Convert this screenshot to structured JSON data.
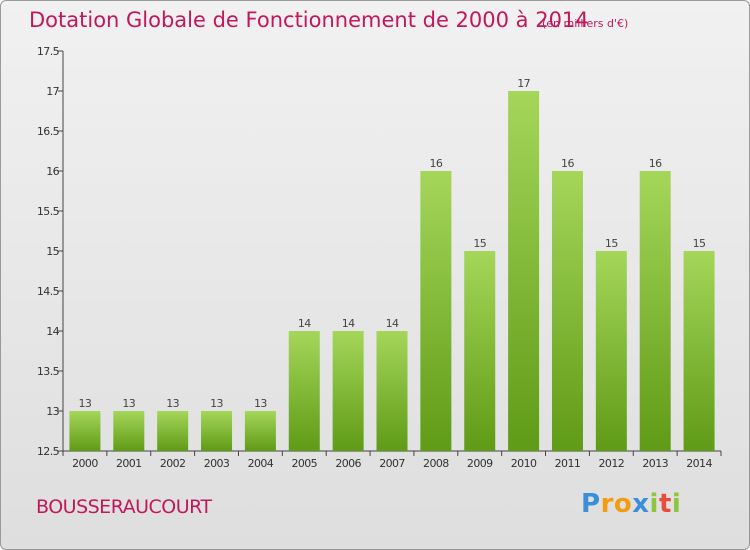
{
  "title": "Dotation Globale de Fonctionnement de 2000 à 2014",
  "subtitle": "(en milliers d'€)",
  "commune": "BOUSSERAUCOURT",
  "logo": {
    "letters": [
      "P",
      "r",
      "o",
      "x",
      "i",
      "t",
      "i"
    ],
    "colors": [
      "#3a8fd8",
      "#f39c12",
      "#f39c12",
      "#3a8fd8",
      "#8cc63f",
      "#e74c3c",
      "#8cc63f"
    ]
  },
  "colors": {
    "accent": "#c2185b",
    "bar_top": "#a5d65a",
    "bar_bottom": "#5f9b16"
  },
  "chart_data": {
    "type": "bar",
    "title": "Dotation Globale de Fonctionnement de 2000 à 2014",
    "subtitle": "(en milliers d'€)",
    "categories": [
      "2000",
      "2001",
      "2002",
      "2003",
      "2004",
      "2005",
      "2006",
      "2007",
      "2008",
      "2009",
      "2010",
      "2011",
      "2012",
      "2013",
      "2014"
    ],
    "values": [
      13,
      13,
      13,
      13,
      13,
      14,
      14,
      14,
      16,
      15,
      17,
      16,
      15,
      16,
      15
    ],
    "ylim": [
      12.5,
      17.5
    ],
    "yticks": [
      12.5,
      13,
      13.5,
      14,
      14.5,
      15,
      15.5,
      16,
      16.5,
      17,
      17.5
    ],
    "ytick_labels": [
      "12.5",
      "13",
      "13.5",
      "14",
      "14.5",
      "15",
      "15.5",
      "16",
      "16.5",
      "17",
      "17.5"
    ],
    "xlabel": "",
    "ylabel": "",
    "grid": false,
    "legend": "none"
  }
}
